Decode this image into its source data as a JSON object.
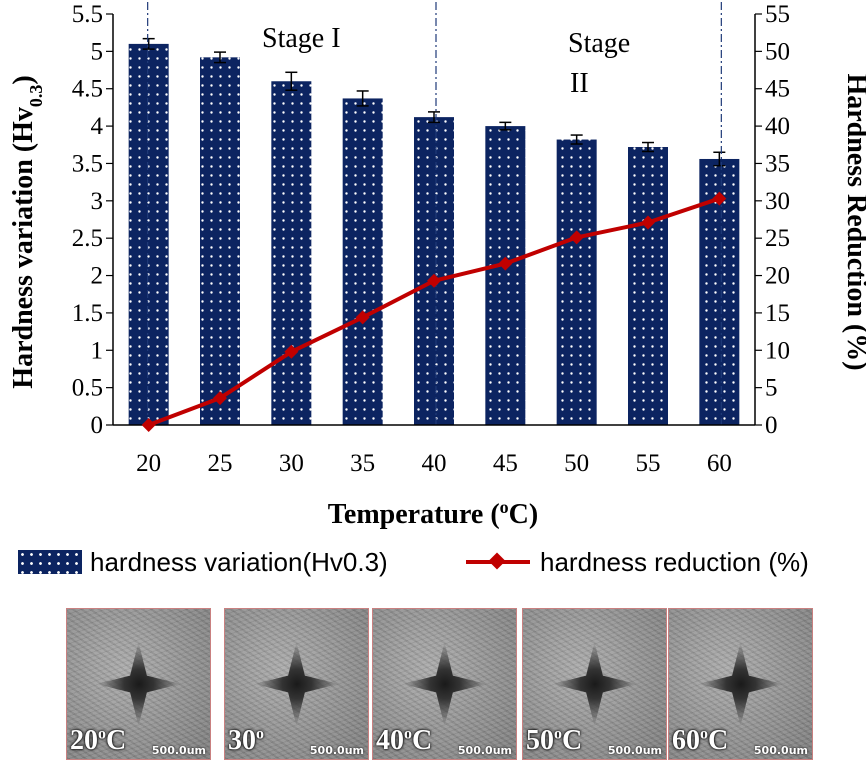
{
  "chart_data": {
    "type": "bar",
    "categories": [
      "20",
      "25",
      "30",
      "35",
      "40",
      "45",
      "50",
      "55",
      "60"
    ],
    "series": [
      {
        "name": "hardness variation(Hv0.3)",
        "type": "bar",
        "axis": "left",
        "values": [
          5.1,
          4.92,
          4.6,
          4.37,
          4.12,
          4.0,
          3.82,
          3.72,
          3.56
        ],
        "errors": [
          0.07,
          0.07,
          0.12,
          0.1,
          0.07,
          0.05,
          0.06,
          0.06,
          0.09
        ],
        "color": "#0c2461"
      },
      {
        "name": "hardness reduction (%)",
        "type": "line",
        "axis": "right",
        "values": [
          0,
          3.6,
          9.8,
          14.4,
          19.3,
          21.6,
          25.1,
          27.1,
          30.3
        ],
        "color": "#c00000"
      }
    ],
    "xlabel": "Temperature (",
    "xlabel_sup": "o",
    "xlabel_suffix": "C)",
    "ylabel": "Hardness variation (Hv",
    "ylabel_sub": "0.3",
    "ylabel_suffix": ")",
    "y2label": "Hardness Reduction (%)",
    "ylim": [
      0,
      5.5
    ],
    "y2lim": [
      0,
      55
    ],
    "yticks": [
      "0",
      "0.5",
      "1",
      "1.5",
      "2",
      "2.5",
      "3",
      "3.5",
      "4",
      "4.5",
      "5",
      "5.5"
    ],
    "y2ticks": [
      "0",
      "5",
      "10",
      "15",
      "20",
      "25",
      "30",
      "35",
      "40",
      "45",
      "50",
      "55"
    ],
    "stage_lines_at": [
      "20",
      "40",
      "60"
    ],
    "annotations": {
      "stage1": "Stage I",
      "stage2_line1": "Stage",
      "stage2_line2": "II"
    },
    "legend": {
      "bar": "hardness variation(Hv0.3)",
      "line": "hardness reduction (%)"
    },
    "legend_placement": "bottom"
  },
  "micrographs": [
    {
      "label": "20",
      "sup": "o",
      "unit": "C",
      "scale": "500.0um"
    },
    {
      "label": "30",
      "sup": "o",
      "unit": "",
      "scale": "500.0um"
    },
    {
      "label": "40",
      "sup": "o",
      "unit": "C",
      "scale": "500.0um"
    },
    {
      "label": "50",
      "sup": "o",
      "unit": "C",
      "scale": "500.0um"
    },
    {
      "label": "60",
      "sup": "o",
      "unit": "C",
      "scale": "500.0um"
    }
  ]
}
